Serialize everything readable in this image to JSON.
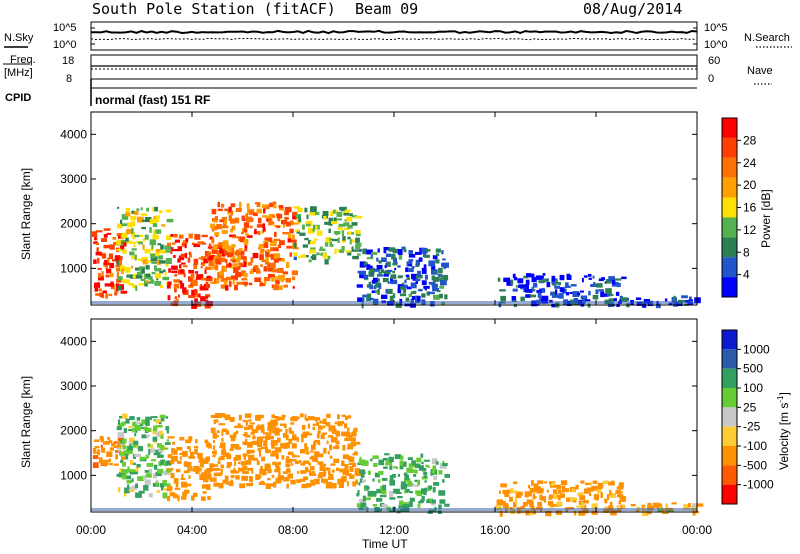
{
  "header": {
    "station": "South Pole Station (fitACF)",
    "beam": "Beam 09",
    "date": "08/Aug/2014"
  },
  "side_labels": {
    "n_sky": "N.Sky",
    "n_search": "N.Search",
    "freq": "Freq.",
    "freq_unit": "[MHz]",
    "nave": "Nave",
    "cpid": "CPID"
  },
  "noise_axis": {
    "top": "10^5",
    "bottom": "10^0"
  },
  "freq_axis": {
    "top": "18",
    "bottom": "8"
  },
  "nave_axis": {
    "top": "60",
    "bottom": "0"
  },
  "cpid_text": "normal (fast) 151 RF",
  "colors": {
    "power_scale": [
      "#0000ff",
      "#2255cc",
      "#2a8050",
      "#55b050",
      "#ffe000",
      "#ffa000",
      "#ff7000",
      "#ff4000",
      "#ff0000"
    ],
    "velocity_scale": [
      "#ff0000",
      "#ff5a00",
      "#ff9000",
      "#ffcc33",
      "#c8c8c8",
      "#66cc33",
      "#33a060",
      "#2a5aaa",
      "#0a1acc"
    ]
  },
  "chart_data": [
    {
      "type": "heatmap",
      "title": "",
      "xlabel": "",
      "ylabel": "Slant Range [km]",
      "x_ticks": [
        "00:00",
        "04:00",
        "08:00",
        "12:00",
        "16:00",
        "20:00",
        "00:00"
      ],
      "xlim_hours": [
        0,
        24
      ],
      "y_ticks": [
        "1000",
        "2000",
        "3000",
        "4000"
      ],
      "ylim_km": [
        180,
        4500
      ],
      "colorbar": {
        "label": "Power [dB]",
        "ticks": [
          "4",
          "8",
          "12",
          "16",
          "20",
          "24",
          "28"
        ],
        "range": [
          0,
          32
        ]
      },
      "regions": [
        {
          "t0": 0.0,
          "t1": 1.2,
          "r0": 400,
          "r1": 1900,
          "level": 26
        },
        {
          "t0": 1.0,
          "t1": 3.0,
          "r0": 600,
          "r1": 2400,
          "level": 14
        },
        {
          "t0": 3.0,
          "t1": 4.7,
          "r0": 200,
          "r1": 1800,
          "level": 27
        },
        {
          "t0": 4.7,
          "t1": 8.0,
          "r0": 600,
          "r1": 2500,
          "level": 24
        },
        {
          "t0": 8.0,
          "t1": 10.5,
          "r0": 1200,
          "r1": 2400,
          "level": 12
        },
        {
          "t0": 10.5,
          "t1": 14.0,
          "r0": 200,
          "r1": 1500,
          "level": 6
        },
        {
          "t0": 16.0,
          "t1": 21.0,
          "r0": 200,
          "r1": 900,
          "level": 4
        },
        {
          "t0": 21.0,
          "t1": 24.0,
          "r0": 200,
          "r1": 400,
          "level": 4
        }
      ]
    },
    {
      "type": "heatmap",
      "title": "",
      "xlabel": "Time UT",
      "ylabel": "Slant Range [km]",
      "x_ticks": [
        "00:00",
        "04:00",
        "08:00",
        "12:00",
        "16:00",
        "20:00",
        "00:00"
      ],
      "xlim_hours": [
        0,
        24
      ],
      "y_ticks": [
        "1000",
        "2000",
        "3000",
        "4000"
      ],
      "ylim_km": [
        180,
        4500
      ],
      "colorbar": {
        "label": "Velocity [m s^-1]",
        "ticks": [
          "1000",
          "500",
          "100",
          "25",
          "-25",
          "-100",
          "-500",
          "-1000"
        ]
      },
      "regions": [
        {
          "t0": 0.0,
          "t1": 1.2,
          "r0": 1200,
          "r1": 1900,
          "level": -400
        },
        {
          "t0": 1.0,
          "t1": 3.0,
          "r0": 600,
          "r1": 2400,
          "level": 80
        },
        {
          "t0": 3.0,
          "t1": 4.7,
          "r0": 500,
          "r1": 1900,
          "level": -350
        },
        {
          "t0": 4.7,
          "t1": 10.5,
          "r0": 800,
          "r1": 2400,
          "level": -300
        },
        {
          "t0": 10.5,
          "t1": 14.0,
          "r0": 200,
          "r1": 1500,
          "level": 150
        },
        {
          "t0": 16.0,
          "t1": 21.0,
          "r0": 200,
          "r1": 900,
          "level": -200
        },
        {
          "t0": 21.0,
          "t1": 24.0,
          "r0": 200,
          "r1": 400,
          "level": -100
        }
      ]
    }
  ]
}
